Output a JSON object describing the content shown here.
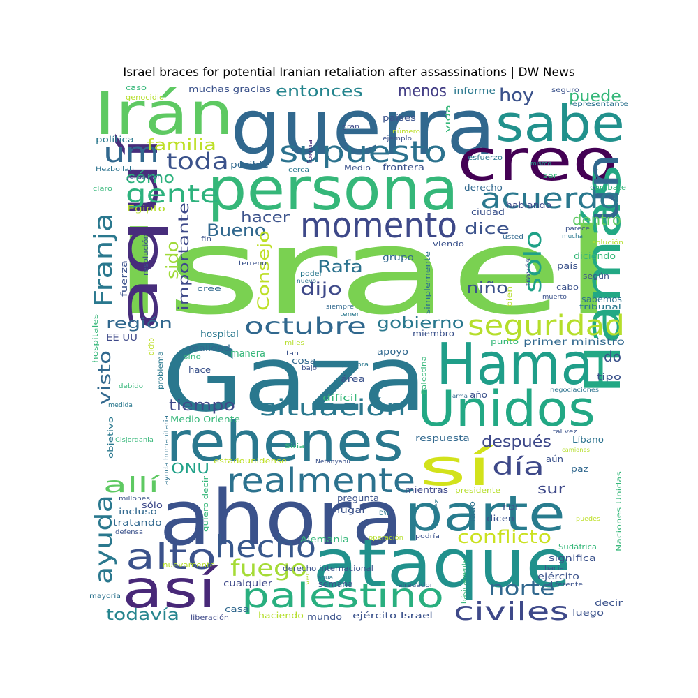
{
  "chart_data": {
    "type": "wordcloud",
    "title": "Israel braces for potential Iranian retaliation after assassinations | DW News",
    "words": [
      {
        "text": "Israel",
        "color": "#7ad151"
      },
      {
        "text": "Gaza",
        "color": "#2a788e"
      },
      {
        "text": "guerra",
        "color": "#31688e"
      },
      {
        "text": "ahora",
        "color": "#3b528b"
      },
      {
        "text": "ataque",
        "color": "#21918c"
      },
      {
        "text": "persona",
        "color": "#35b779"
      },
      {
        "text": "Irán",
        "color": "#5ec962"
      },
      {
        "text": "creo",
        "color": "#440154"
      },
      {
        "text": "sabe",
        "color": "#21918c"
      },
      {
        "text": "Hama",
        "color": "#1f9e89"
      },
      {
        "text": "Hamás",
        "color": "#22a884"
      },
      {
        "text": "rehenes",
        "color": "#2a788e"
      },
      {
        "text": "aquí",
        "color": "#472d7b"
      },
      {
        "text": "así",
        "color": "#482878"
      },
      {
        "text": "Unidos",
        "color": "#22a884"
      },
      {
        "text": "parte",
        "color": "#287c8e"
      },
      {
        "text": "sí",
        "color": "#d2e21b"
      },
      {
        "text": "un",
        "color": "#31688e"
      },
      {
        "text": "momento",
        "color": "#3e4989"
      },
      {
        "text": "supuesto",
        "color": "#2c728e"
      },
      {
        "text": "palestino",
        "color": "#29af7f"
      },
      {
        "text": "realmente",
        "color": "#2c728e"
      },
      {
        "text": "alto",
        "color": "#3b528b"
      },
      {
        "text": "hecho",
        "color": "#38588c"
      },
      {
        "text": "acuerdo",
        "color": "#2a788e"
      },
      {
        "text": "gente",
        "color": "#2db27d"
      },
      {
        "text": "um",
        "color": "#31688e"
      },
      {
        "text": "seguridad",
        "color": "#b5de2b"
      },
      {
        "text": "octubre",
        "color": "#31688e"
      },
      {
        "text": "situación",
        "color": "#2a788e"
      },
      {
        "text": "toda",
        "color": "#3b528b"
      },
      {
        "text": "Franja",
        "color": "#2a788e"
      },
      {
        "text": "civiles",
        "color": "#3e4989"
      },
      {
        "text": "ayuda",
        "color": "#2a788e"
      },
      {
        "text": "fuego",
        "color": "#a5db36"
      },
      {
        "text": "solo",
        "color": "#1fa187"
      },
      {
        "text": "día",
        "color": "#3e4989"
      },
      {
        "text": "allí",
        "color": "#5ec962"
      },
      {
        "text": "conflicto",
        "color": "#cae11f"
      },
      {
        "text": "norte",
        "color": "#31688e"
      },
      {
        "text": "puede",
        "color": "#35b779"
      },
      {
        "text": "hoy",
        "color": "#3b528b"
      },
      {
        "text": "menos",
        "color": "#433e85"
      },
      {
        "text": "entonces",
        "color": "#25858e"
      },
      {
        "text": "familia",
        "color": "#bddf26"
      },
      {
        "text": "cómo",
        "color": "#2db27d"
      },
      {
        "text": "Bueno",
        "color": "#31688e"
      },
      {
        "text": "hacer",
        "color": "#3b528b"
      },
      {
        "text": "Rafa",
        "color": "#2c728e"
      },
      {
        "text": "dijo",
        "color": "#3e4989"
      },
      {
        "text": "sido",
        "color": "#a0da39"
      },
      {
        "text": "importante",
        "color": "#3e4989"
      },
      {
        "text": "Consejo",
        "color": "#bddf26"
      },
      {
        "text": "región",
        "color": "#31688e"
      },
      {
        "text": "gobierno",
        "color": "#2a788e"
      },
      {
        "text": "visto",
        "color": "#31688e"
      },
      {
        "text": "tiempo",
        "color": "#3e4989"
      },
      {
        "text": "ONU",
        "color": "#1fa187"
      },
      {
        "text": "después",
        "color": "#3e4989"
      },
      {
        "text": "todavía",
        "color": "#25858e"
      },
      {
        "text": "dentro",
        "color": "#5ec962"
      },
      {
        "text": "dice",
        "color": "#3b528b"
      },
      {
        "text": "niño",
        "color": "#3b528b"
      },
      {
        "text": "sur",
        "color": "#3e4989"
      },
      {
        "text": "do",
        "color": "#3b528b"
      },
      {
        "text": "muchas gracias",
        "color": "#3b528b"
      },
      {
        "text": "informe",
        "color": "#2a788e"
      },
      {
        "text": "seguro",
        "color": "#3b528b"
      },
      {
        "text": "representante",
        "color": "#2c728e"
      },
      {
        "text": "caso",
        "color": "#35b779"
      },
      {
        "text": "genocidio",
        "color": "#b5de2b"
      },
      {
        "text": "países",
        "color": "#3b528b"
      },
      {
        "text": "vida",
        "color": "#35b779"
      },
      {
        "text": "política",
        "color": "#2a788e"
      },
      {
        "text": "gran",
        "color": "#3e4989"
      },
      {
        "text": "número",
        "color": "#bddf26"
      },
      {
        "text": "ejemplo",
        "color": "#3b528b"
      },
      {
        "text": "esfuerzo",
        "color": "#2a788e"
      },
      {
        "text": "mismo",
        "color": "#1fa187"
      },
      {
        "text": "posible",
        "color": "#31688e"
      },
      {
        "text": "Medio",
        "color": "#3b528b"
      },
      {
        "text": "frontera",
        "color": "#3b528b"
      },
      {
        "text": "cerca",
        "color": "#2a788e"
      },
      {
        "text": "forma",
        "color": "#482878"
      },
      {
        "text": "ser",
        "color": "#35b779"
      },
      {
        "text": "Hezbollah",
        "color": "#2c728e"
      },
      {
        "text": "Jerusalén",
        "color": "#3b528b"
      },
      {
        "text": "claro",
        "color": "#35b779"
      },
      {
        "text": "Egipto",
        "color": "#b5de2b"
      },
      {
        "text": "derecho",
        "color": "#31688e"
      },
      {
        "text": "hablando",
        "color": "#3e4989"
      },
      {
        "text": "combate",
        "color": "#35b779"
      },
      {
        "text": "ciudad",
        "color": "#3b528b"
      },
      {
        "text": "fin",
        "color": "#3b528b"
      },
      {
        "text": "parece",
        "color": "#3b528b"
      },
      {
        "text": "usted",
        "color": "#31688e"
      },
      {
        "text": "mucha",
        "color": "#2a788e"
      },
      {
        "text": "solución",
        "color": "#b5de2b"
      },
      {
        "text": "resolución",
        "color": "#3b528b"
      },
      {
        "text": "viendo",
        "color": "#3b528b"
      },
      {
        "text": "terreno",
        "color": "#3b528b"
      },
      {
        "text": "grupo",
        "color": "#31688e"
      },
      {
        "text": "diciendo",
        "color": "#35b779"
      },
      {
        "text": "país",
        "color": "#3b528b"
      },
      {
        "text": "según",
        "color": "#3b528b"
      },
      {
        "text": "fuerza",
        "color": "#3b528b"
      },
      {
        "text": "nuevo",
        "color": "#2c728e"
      },
      {
        "text": "poder",
        "color": "#2a788e"
      },
      {
        "text": "simplemente",
        "color": "#2c728e"
      },
      {
        "text": "través",
        "color": "#3b528b"
      },
      {
        "text": "cabo",
        "color": "#3b528b"
      },
      {
        "text": "cree",
        "color": "#31688e"
      },
      {
        "text": "bien",
        "color": "#b5de2b"
      },
      {
        "text": "muerto",
        "color": "#3b528b"
      },
      {
        "text": "sabemos",
        "color": "#2c728e"
      },
      {
        "text": "tribunal",
        "color": "#2a788e"
      },
      {
        "text": "siempre",
        "color": "#31688e"
      },
      {
        "text": "tener",
        "color": "#2a788e"
      },
      {
        "text": "hospitales",
        "color": "#35b779"
      },
      {
        "text": "EE UU",
        "color": "#3e4989"
      },
      {
        "text": "hospital",
        "color": "#2a788e"
      },
      {
        "text": "dicho",
        "color": "#bddf26"
      },
      {
        "text": "realidad",
        "color": "#31688e"
      },
      {
        "text": "miles",
        "color": "#b5de2b"
      },
      {
        "text": "miembro",
        "color": "#3b528b"
      },
      {
        "text": "punto",
        "color": "#35b779"
      },
      {
        "text": "primer ministro",
        "color": "#31688e"
      },
      {
        "text": "sino",
        "color": "#35b779"
      },
      {
        "text": "manera",
        "color": "#35b779"
      },
      {
        "text": "apoyo",
        "color": "#31688e"
      },
      {
        "text": "hace",
        "color": "#3b528b"
      },
      {
        "text": "cosa",
        "color": "#31688e"
      },
      {
        "text": "tan",
        "color": "#3b528b"
      },
      {
        "text": "bajo",
        "color": "#3b528b"
      },
      {
        "text": "palabra",
        "color": "#2a788e"
      },
      {
        "text": "Palestina",
        "color": "#35b779"
      },
      {
        "text": "problema",
        "color": "#2a788e"
      },
      {
        "text": "área",
        "color": "#3b528b"
      },
      {
        "text": "tipo",
        "color": "#3b528b"
      },
      {
        "text": "debido",
        "color": "#35b779"
      },
      {
        "text": "difícil",
        "color": "#35b779"
      },
      {
        "text": "año",
        "color": "#3b528b"
      },
      {
        "text": "arma",
        "color": "#31688e"
      },
      {
        "text": "negociaciones",
        "color": "#2c728e"
      },
      {
        "text": "medida",
        "color": "#2a788e"
      },
      {
        "text": "Medio Oriente",
        "color": "#35b779"
      },
      {
        "text": "objetivo",
        "color": "#2a788e"
      },
      {
        "text": "ayuda humanitaria",
        "color": "#2c728e"
      },
      {
        "text": "Cisjordania",
        "color": "#35b779"
      },
      {
        "text": "respuesta",
        "color": "#31688e"
      },
      {
        "text": "tal vez",
        "color": "#3b528b"
      },
      {
        "text": "Líbano",
        "color": "#2c728e"
      },
      {
        "text": "estadounidense",
        "color": "#bddf26"
      },
      {
        "text": "Netanyahu",
        "color": "#3b528b"
      },
      {
        "text": "camiones",
        "color": "#b5de2b"
      },
      {
        "text": "Siria",
        "color": "#35b779"
      },
      {
        "text": "quiero decir",
        "color": "#35b779"
      },
      {
        "text": "aún",
        "color": "#3b528b"
      },
      {
        "text": "paz",
        "color": "#31688e"
      },
      {
        "text": "millones",
        "color": "#3b528b"
      },
      {
        "text": "sólo",
        "color": "#3e4989"
      },
      {
        "text": "mientras",
        "color": "#3e4989"
      },
      {
        "text": "presidente",
        "color": "#b5de2b"
      },
      {
        "text": "Naciones Unidas",
        "color": "#35b779"
      },
      {
        "text": "incluso",
        "color": "#31688e"
      },
      {
        "text": "pregunta",
        "color": "#3b528b"
      },
      {
        "text": "vez",
        "color": "#2a788e"
      },
      {
        "text": "lado",
        "color": "#2c728e"
      },
      {
        "text": "FDI",
        "color": "#3b528b"
      },
      {
        "text": "tratando",
        "color": "#31688e"
      },
      {
        "text": "lugar",
        "color": "#3b528b"
      },
      {
        "text": "DW",
        "color": "#2a788e"
      },
      {
        "text": "dicen",
        "color": "#3b528b"
      },
      {
        "text": "puedes",
        "color": "#bddf26"
      },
      {
        "text": "defensa",
        "color": "#3b528b"
      },
      {
        "text": "Alemania",
        "color": "#35b779"
      },
      {
        "text": "operación",
        "color": "#b5de2b"
      },
      {
        "text": "podría",
        "color": "#3b528b"
      },
      {
        "text": "Sudáfrica",
        "color": "#35b779"
      },
      {
        "text": "significa",
        "color": "#3b528b"
      },
      {
        "text": "hacia",
        "color": "#3b528b"
      },
      {
        "text": "nuevamente",
        "color": "#b5de2b"
      },
      {
        "text": "derecho internacional",
        "color": "#3b528b"
      },
      {
        "text": "agua",
        "color": "#2c728e"
      },
      {
        "text": "ver",
        "color": "#b5de2b"
      },
      {
        "text": "semana",
        "color": "#3b528b"
      },
      {
        "text": "alrededor",
        "color": "#3b528b"
      },
      {
        "text": "básicamente",
        "color": "#35b779"
      },
      {
        "text": "ejército",
        "color": "#3b528b"
      },
      {
        "text": "diferente",
        "color": "#3b528b"
      },
      {
        "text": "mayoría",
        "color": "#2c728e"
      },
      {
        "text": "cualquier",
        "color": "#3e4989"
      },
      {
        "text": "decir",
        "color": "#3b528b"
      },
      {
        "text": "casa",
        "color": "#31688e"
      },
      {
        "text": "liberación",
        "color": "#3e4989"
      },
      {
        "text": "haciendo",
        "color": "#b5de2b"
      },
      {
        "text": "mundo",
        "color": "#3b528b"
      },
      {
        "text": "ejército Israel",
        "color": "#3b528b"
      },
      {
        "text": "luego",
        "color": "#3b528b"
      }
    ]
  }
}
